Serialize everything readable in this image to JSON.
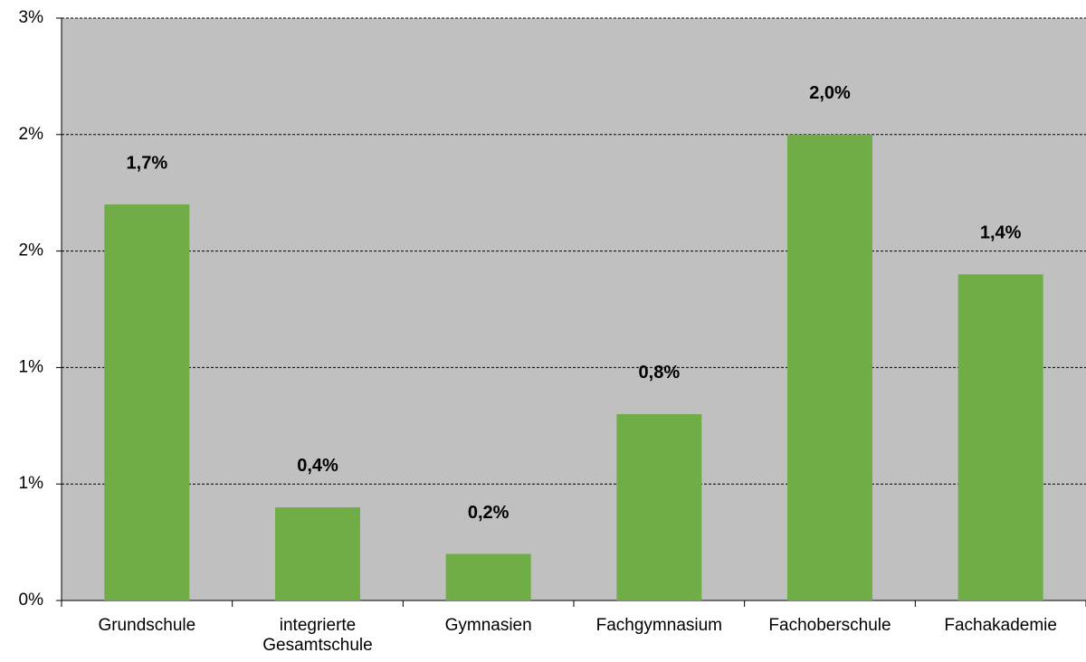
{
  "chart_data": {
    "type": "bar",
    "categories": [
      "Grundschule",
      "integrierte Gesamtschule",
      "Gymnasien",
      "Fachgymnasium",
      "Fachoberschule",
      "Fachakademie"
    ],
    "values": [
      1.7,
      0.4,
      0.2,
      0.8,
      2.0,
      1.4
    ],
    "value_labels": [
      "1,7%",
      "0,4%",
      "0,2%",
      "0,8%",
      "2,0%",
      "1,4%"
    ],
    "color": "#70ad47",
    "ylim": [
      0,
      2.5
    ],
    "yticks": [
      {
        "value": 0,
        "label": "0%"
      },
      {
        "value": 0.5,
        "label": "1%"
      },
      {
        "value": 1,
        "label": "1%"
      },
      {
        "value": 1.5,
        "label": "2%"
      },
      {
        "value": 2,
        "label": "2%"
      },
      {
        "value": 2.5,
        "label": "3%"
      }
    ],
    "grid": true
  }
}
